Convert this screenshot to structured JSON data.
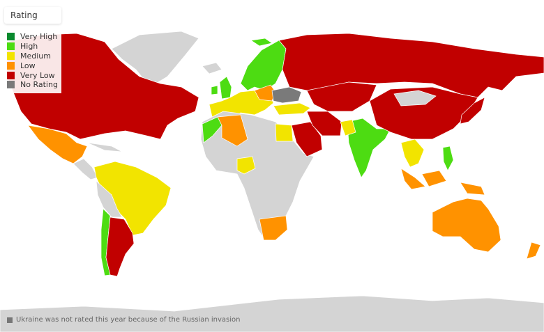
{
  "legend": {
    "title": "Rating",
    "items": [
      {
        "label": "Very High",
        "color": "#0a8a2e"
      },
      {
        "label": "High",
        "color": "#4ddc12"
      },
      {
        "label": "Medium",
        "color": "#f2e400"
      },
      {
        "label": "Low",
        "color": "#ff9200"
      },
      {
        "label": "Very Low",
        "color": "#c10000"
      },
      {
        "label": "No Rating",
        "color": "#7a7a7a"
      }
    ]
  },
  "colors": {
    "unrated_land": "#d4d4d4",
    "ocean": "#ffffff"
  },
  "footnote": "Ukraine was not rated this year because of the Russian invasion"
}
